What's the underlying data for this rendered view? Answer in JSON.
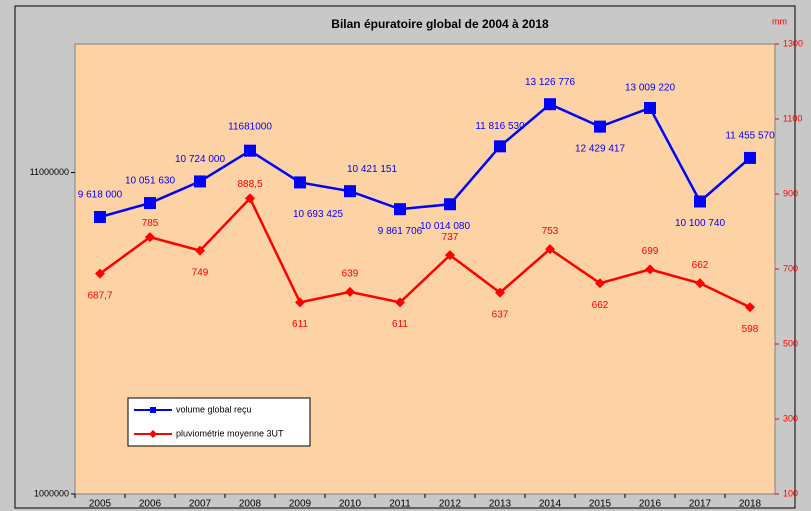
{
  "chart_data": {
    "type": "line",
    "title": "Bilan épuratoire global de 2004 à 2018",
    "y2_unit": "mm",
    "categories": [
      "2005",
      "2006",
      "2007",
      "2008",
      "2009",
      "2010",
      "2011",
      "2012",
      "2013",
      "2014",
      "2015",
      "2016",
      "2017",
      "2018"
    ],
    "series": [
      {
        "name": "volume global reçu",
        "color": "#0000ff",
        "marker": "square",
        "values": [
          9618000,
          10051630,
          10724000,
          11681000,
          10693425,
          10421151,
          9861706,
          10014080,
          11816530,
          13126776,
          12429417,
          13009220,
          10100740,
          11455570
        ],
        "value_labels": [
          "9 618 000",
          "10 051 630",
          "10 724 000",
          "11681000",
          "10 693 425",
          "10 421 151",
          "9 861 706",
          "10 014 080",
          "11 816 530",
          "13 126 776",
          "12 429 417",
          "13 009 220",
          "10 100 740",
          "11 455 570"
        ]
      },
      {
        "name": "pluviométrie moyenne 3UT",
        "color": "#ff0000",
        "marker": "diamond",
        "axis": "y2",
        "values": [
          687.7,
          785,
          749,
          888.5,
          611,
          639,
          611,
          737,
          637,
          753,
          662,
          699,
          662,
          598
        ],
        "value_labels": [
          "687,7",
          "785",
          "749",
          "888,5",
          "611",
          "639",
          "611",
          "737",
          "637",
          "753",
          "662",
          "699",
          "662",
          "598"
        ]
      }
    ],
    "ylim": [
      1000000,
      15000000
    ],
    "yticks": [
      1000000,
      11000000
    ],
    "y2lim": [
      100,
      1300
    ],
    "y2ticks": [
      100,
      300,
      500,
      700,
      900,
      1100,
      1300
    ],
    "legend": "lower left"
  }
}
